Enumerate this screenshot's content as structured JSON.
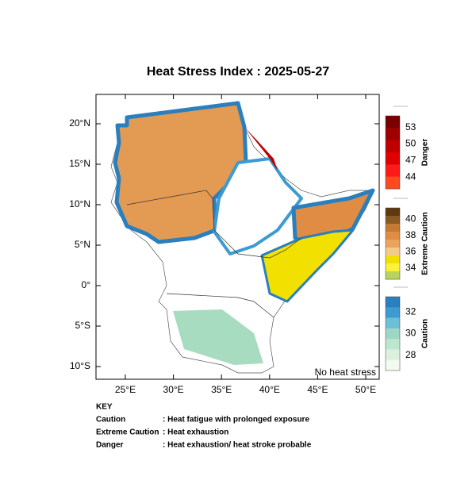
{
  "title": "Heat Stress Index : 2025-05-27",
  "lon_ticks": [
    "25°E",
    "30°E",
    "35°E",
    "40°E",
    "45°E",
    "50°E"
  ],
  "lat_ticks": [
    "20°N",
    "15°N",
    "10°N",
    "5°N",
    "0°",
    "5°S",
    "10°S"
  ],
  "note": "No heat stress",
  "legend": [
    {
      "name": "Danger",
      "ticks": [
        53,
        50,
        47,
        44
      ],
      "colors": [
        "#7a0000",
        "#9e0000",
        "#c00000",
        "#e00000",
        "#ff1a1a",
        "#ff4a20"
      ]
    },
    {
      "name": "Extreme Caution",
      "ticks": [
        40,
        38,
        36,
        34
      ],
      "colors": [
        "#5c3a0e",
        "#8a5a22",
        "#c57a34",
        "#e08c45",
        "#eca35e",
        "#f3c98e",
        "#f2e100",
        "#fbf23a",
        "#b9d45a"
      ]
    },
    {
      "name": "Caution",
      "ticks": [
        32,
        30,
        28
      ],
      "colors": [
        "#2a7fbf",
        "#3c9bd0",
        "#6cbfd4",
        "#9ed7c6",
        "#bde6cf",
        "#dbf1dd",
        "#f3faf0"
      ]
    }
  ],
  "key": {
    "heading": "KEY",
    "rows": [
      [
        "Caution",
        ": Heat fatigue with prolonged exposure"
      ],
      [
        "Extreme Caution",
        ": Heat exhaustion"
      ],
      [
        "Danger",
        ": Heat exhaustion/ heat stroke probable"
      ]
    ]
  }
}
